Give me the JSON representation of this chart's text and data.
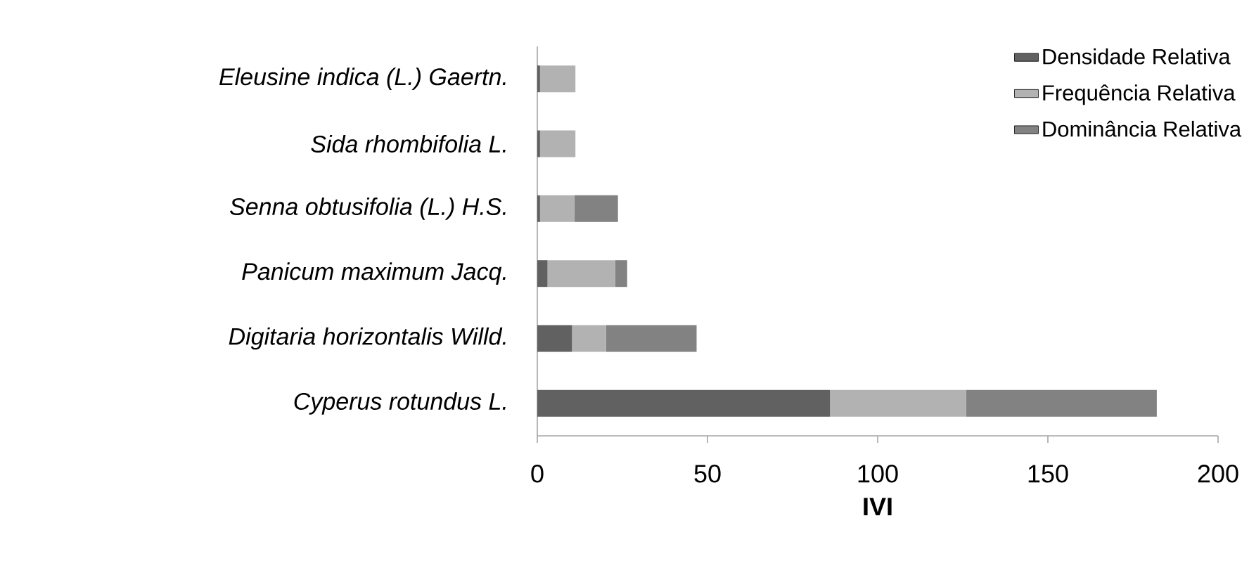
{
  "chart_data": {
    "type": "bar",
    "orientation": "horizontal",
    "stacked": true,
    "xlabel": "IVI",
    "categories": [
      "Eleusine indica (L.) Gaertn.",
      "Sida rhombifolia L.",
      "Senna  obtusifolia (L.) H.S.",
      "Panicum maximum Jacq.",
      "Digitaria horizontalis Willd.",
      "Cyperus rotundus L."
    ],
    "series": [
      {
        "name": "Densidade Relativa",
        "color": "#616161",
        "values": [
          0.8,
          0.8,
          0.8,
          3,
          10.2,
          86
        ]
      },
      {
        "name": "Frequência Relativa",
        "color": "#b2b2b2",
        "values": [
          10.4,
          10.4,
          10.1,
          19.9,
          10,
          40
        ]
      },
      {
        "name": "Dominância Relativa",
        "color": "#828282",
        "values": [
          0,
          0,
          12.8,
          3.5,
          26.6,
          56
        ]
      }
    ],
    "xlim": [
      0,
      200
    ],
    "xticks": [
      0,
      50,
      100,
      150,
      200
    ],
    "legend": "top right"
  }
}
